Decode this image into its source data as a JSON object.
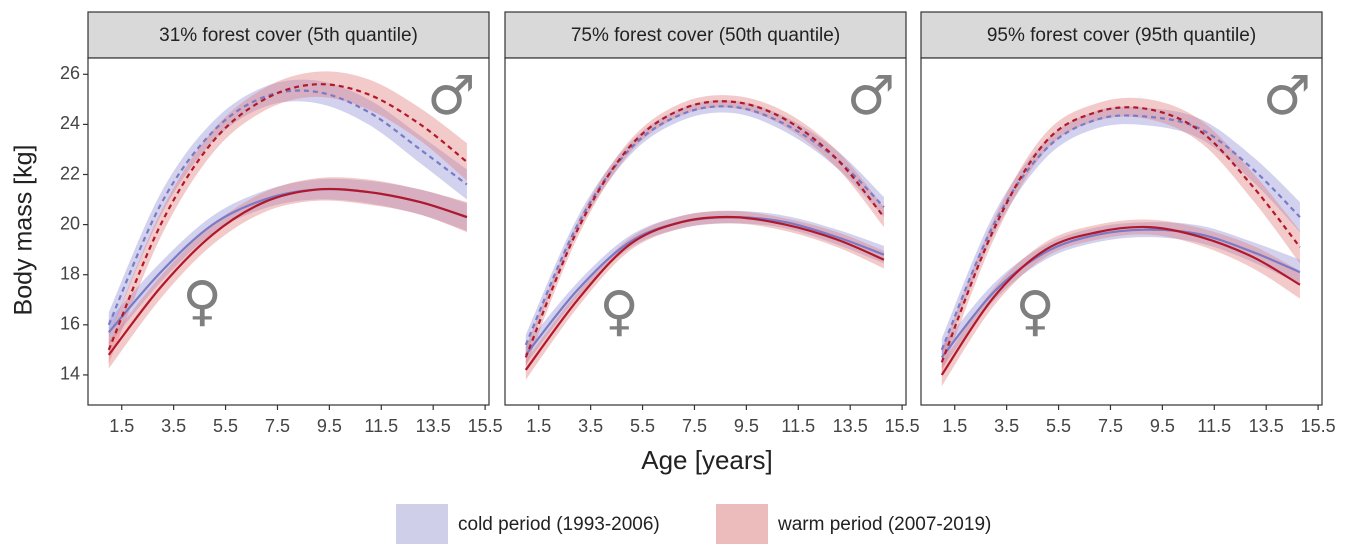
{
  "figure": {
    "ylabel": "Body mass [kg]",
    "xlabel": "Age [years]",
    "legend": [
      {
        "name": "cold period (1993-2006)",
        "fill": "#cfcfea"
      },
      {
        "name": "warm period (2007-2019)",
        "fill": "#ecbcbc"
      }
    ]
  },
  "chart_data": [
    {
      "type": "line",
      "title": "31% forest cover (5th quantile)",
      "x": [
        1,
        3,
        5,
        7,
        9,
        11,
        13,
        14.8
      ],
      "xlim": [
        0.2,
        15.65
      ],
      "ylim": [
        12.8,
        26.65
      ],
      "xticks": [
        1.5,
        3.5,
        5.5,
        7.5,
        9.5,
        11.5,
        13.5,
        15.5
      ],
      "yticks": [
        14,
        16,
        18,
        20,
        22,
        24,
        26
      ],
      "series": [
        {
          "color": "#7a7ac6",
          "fill": "#8f8fd6",
          "dash": false,
          "values": [
            15.7,
            18.1,
            20.0,
            21.0,
            21.4,
            21.3,
            20.9,
            20.3
          ],
          "band": [
            0.5,
            0.4,
            0.35,
            0.35,
            0.4,
            0.45,
            0.5,
            0.55
          ]
        },
        {
          "color": "#b2182b",
          "fill": "#e07a7a",
          "dash": false,
          "values": [
            14.8,
            17.5,
            19.6,
            20.9,
            21.4,
            21.3,
            20.9,
            20.3
          ],
          "band": [
            0.55,
            0.45,
            0.4,
            0.4,
            0.45,
            0.5,
            0.5,
            0.6
          ]
        },
        {
          "color": "#7a7ac6",
          "fill": "#8f8fd6",
          "dash": true,
          "values": [
            16.0,
            20.8,
            23.7,
            25.1,
            25.3,
            24.5,
            23.0,
            21.6
          ],
          "band": [
            0.5,
            0.45,
            0.4,
            0.4,
            0.45,
            0.5,
            0.55,
            0.6
          ]
        },
        {
          "color": "#b2182b",
          "fill": "#e07a7a",
          "dash": true,
          "values": [
            15.0,
            20.0,
            23.3,
            25.0,
            25.6,
            25.2,
            24.0,
            22.5
          ],
          "band": [
            0.55,
            0.5,
            0.45,
            0.45,
            0.5,
            0.6,
            0.65,
            0.75
          ]
        }
      ],
      "annotations": [
        {
          "text": "♀",
          "x": 4.6,
          "y": 16.8
        },
        {
          "text": "♂",
          "x": 14.2,
          "y": 25.0
        }
      ]
    },
    {
      "type": "line",
      "title": "75% forest cover (50th quantile)",
      "x": [
        1,
        3,
        5,
        7,
        9,
        11,
        13,
        14.8
      ],
      "xlim": [
        0.2,
        15.65
      ],
      "ylim": [
        12.8,
        26.65
      ],
      "xticks": [
        1.5,
        3.5,
        5.5,
        7.5,
        9.5,
        11.5,
        13.5,
        15.5
      ],
      "series": [
        {
          "color": "#7a7ac6",
          "fill": "#8f8fd6",
          "dash": false,
          "values": [
            14.8,
            17.4,
            19.3,
            20.1,
            20.3,
            20.1,
            19.5,
            18.8
          ],
          "band": [
            0.4,
            0.3,
            0.25,
            0.25,
            0.25,
            0.25,
            0.3,
            0.35
          ]
        },
        {
          "color": "#b2182b",
          "fill": "#e07a7a",
          "dash": false,
          "values": [
            14.2,
            17.0,
            19.2,
            20.1,
            20.3,
            20.0,
            19.4,
            18.6
          ],
          "band": [
            0.4,
            0.3,
            0.25,
            0.25,
            0.25,
            0.25,
            0.3,
            0.35
          ]
        },
        {
          "color": "#7a7ac6",
          "fill": "#8f8fd6",
          "dash": true,
          "values": [
            15.2,
            20.0,
            23.0,
            24.4,
            24.7,
            24.0,
            22.6,
            20.7
          ],
          "band": [
            0.4,
            0.3,
            0.25,
            0.25,
            0.25,
            0.3,
            0.35,
            0.4
          ]
        },
        {
          "color": "#b2182b",
          "fill": "#e07a7a",
          "dash": true,
          "values": [
            14.7,
            19.8,
            23.1,
            24.6,
            24.9,
            24.2,
            22.6,
            20.3
          ],
          "band": [
            0.4,
            0.3,
            0.25,
            0.25,
            0.25,
            0.3,
            0.35,
            0.4
          ]
        }
      ],
      "annotations": [
        {
          "text": "♀",
          "x": 4.6,
          "y": 16.4
        },
        {
          "text": "♂",
          "x": 14.3,
          "y": 25.0
        }
      ]
    },
    {
      "type": "line",
      "title": "95% forest cover (95th quantile)",
      "x": [
        1,
        3,
        5,
        7,
        9,
        11,
        13,
        14.8
      ],
      "xlim": [
        0.2,
        15.65
      ],
      "ylim": [
        12.8,
        26.65
      ],
      "xticks": [
        1.5,
        3.5,
        5.5,
        7.5,
        9.5,
        11.5,
        13.5,
        15.5
      ],
      "series": [
        {
          "color": "#7a7ac6",
          "fill": "#8f8fd6",
          "dash": false,
          "values": [
            14.7,
            17.3,
            18.9,
            19.6,
            19.8,
            19.6,
            18.9,
            18.1
          ],
          "band": [
            0.45,
            0.35,
            0.3,
            0.3,
            0.3,
            0.35,
            0.4,
            0.5
          ]
        },
        {
          "color": "#b2182b",
          "fill": "#e07a7a",
          "dash": false,
          "values": [
            14.0,
            17.1,
            19.0,
            19.7,
            19.9,
            19.5,
            18.7,
            17.6
          ],
          "band": [
            0.45,
            0.35,
            0.3,
            0.3,
            0.3,
            0.35,
            0.45,
            0.55
          ]
        },
        {
          "color": "#7a7ac6",
          "fill": "#8f8fd6",
          "dash": true,
          "values": [
            15.0,
            20.0,
            23.0,
            24.2,
            24.3,
            23.8,
            22.2,
            20.3
          ],
          "band": [
            0.45,
            0.4,
            0.35,
            0.35,
            0.35,
            0.4,
            0.5,
            0.6
          ]
        },
        {
          "color": "#b2182b",
          "fill": "#e07a7a",
          "dash": true,
          "values": [
            14.5,
            19.8,
            23.3,
            24.5,
            24.6,
            23.7,
            21.5,
            19.1
          ],
          "band": [
            0.45,
            0.4,
            0.35,
            0.35,
            0.4,
            0.45,
            0.55,
            0.65
          ]
        }
      ],
      "annotations": [
        {
          "text": "♀",
          "x": 4.6,
          "y": 16.4
        },
        {
          "text": "♂",
          "x": 14.3,
          "y": 25.0
        }
      ]
    }
  ]
}
